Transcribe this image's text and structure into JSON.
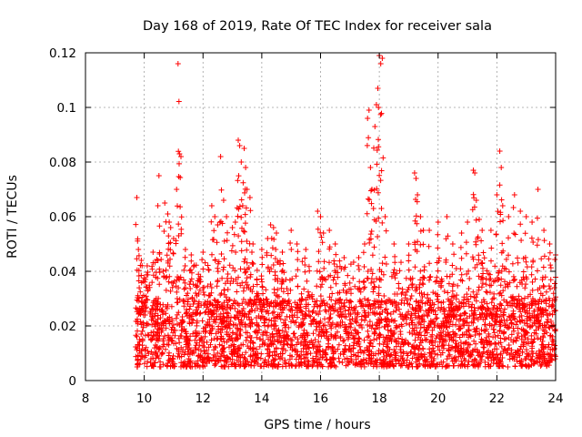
{
  "chart_data": {
    "type": "scatter",
    "title": "Day 168 of 2019, Rate Of TEC Index for receiver sala",
    "xlabel": "GPS time / hours",
    "ylabel": "ROTI / TECUs",
    "xlim": [
      8,
      24
    ],
    "ylim": [
      0,
      0.12
    ],
    "xticks": [
      "8",
      "10",
      "12",
      "14",
      "16",
      "18",
      "20",
      "22",
      "24"
    ],
    "xtick_values": [
      8,
      10,
      12,
      14,
      16,
      18,
      20,
      22,
      24
    ],
    "yticks": [
      "0",
      "0.02",
      "0.04",
      "0.06",
      "0.08",
      "0.1",
      "0.12"
    ],
    "ytick_values": [
      0,
      0.02,
      0.04,
      0.06,
      0.08,
      0.1,
      0.12
    ],
    "grid": true,
    "marker": "+",
    "color": "#ff0000",
    "series": [
      {
        "name": "ROTI",
        "x_start": 9.7,
        "x_end": 24.0,
        "baseline_range": [
          0.005,
          0.03
        ],
        "points": [
          [
            9.75,
            0.067
          ],
          [
            9.8,
            0.048
          ],
          [
            9.9,
            0.044
          ],
          [
            10.1,
            0.042
          ],
          [
            10.3,
            0.047
          ],
          [
            10.5,
            0.075
          ],
          [
            10.7,
            0.065
          ],
          [
            10.8,
            0.061
          ],
          [
            10.85,
            0.058
          ],
          [
            10.9,
            0.056
          ],
          [
            11.0,
            0.052
          ],
          [
            11.1,
            0.07
          ],
          [
            11.15,
            0.116
          ],
          [
            11.2,
            0.083
          ],
          [
            11.25,
            0.082
          ],
          [
            11.4,
            0.048
          ],
          [
            11.6,
            0.046
          ],
          [
            12.0,
            0.047
          ],
          [
            12.3,
            0.064
          ],
          [
            12.4,
            0.06
          ],
          [
            12.5,
            0.057
          ],
          [
            12.6,
            0.082
          ],
          [
            12.7,
            0.066
          ],
          [
            12.8,
            0.06
          ],
          [
            13.0,
            0.056
          ],
          [
            13.1,
            0.058
          ],
          [
            13.2,
            0.088
          ],
          [
            13.25,
            0.086
          ],
          [
            13.3,
            0.08
          ],
          [
            13.35,
            0.064
          ],
          [
            13.4,
            0.085
          ],
          [
            13.45,
            0.078
          ],
          [
            13.5,
            0.07
          ],
          [
            13.6,
            0.067
          ],
          [
            13.7,
            0.05
          ],
          [
            14.0,
            0.048
          ],
          [
            14.2,
            0.052
          ],
          [
            14.3,
            0.057
          ],
          [
            14.4,
            0.056
          ],
          [
            14.5,
            0.054
          ],
          [
            14.7,
            0.047
          ],
          [
            15.0,
            0.055
          ],
          [
            15.2,
            0.05
          ],
          [
            15.5,
            0.048
          ],
          [
            15.9,
            0.062
          ],
          [
            16.0,
            0.06
          ],
          [
            16.1,
            0.054
          ],
          [
            16.3,
            0.055
          ],
          [
            16.5,
            0.05
          ],
          [
            16.8,
            0.045
          ],
          [
            17.3,
            0.045
          ],
          [
            17.5,
            0.05
          ],
          [
            17.6,
            0.096
          ],
          [
            17.65,
            0.099
          ],
          [
            17.7,
            0.078
          ],
          [
            17.75,
            0.07
          ],
          [
            17.8,
            0.063
          ],
          [
            17.85,
            0.093
          ],
          [
            17.9,
            0.101
          ],
          [
            17.95,
            0.107
          ],
          [
            18.0,
            0.119
          ],
          [
            18.05,
            0.116
          ],
          [
            18.1,
            0.118
          ],
          [
            18.2,
            0.06
          ],
          [
            18.5,
            0.05
          ],
          [
            19.0,
            0.05
          ],
          [
            19.2,
            0.076
          ],
          [
            19.25,
            0.074
          ],
          [
            19.3,
            0.068
          ],
          [
            19.4,
            0.06
          ],
          [
            19.5,
            0.055
          ],
          [
            19.7,
            0.055
          ],
          [
            20.0,
            0.058
          ],
          [
            20.3,
            0.06
          ],
          [
            20.5,
            0.05
          ],
          [
            20.8,
            0.054
          ],
          [
            21.0,
            0.058
          ],
          [
            21.2,
            0.077
          ],
          [
            21.25,
            0.076
          ],
          [
            21.3,
            0.066
          ],
          [
            21.4,
            0.059
          ],
          [
            21.5,
            0.055
          ],
          [
            21.8,
            0.055
          ],
          [
            22.0,
            0.068
          ],
          [
            22.1,
            0.084
          ],
          [
            22.15,
            0.078
          ],
          [
            22.2,
            0.064
          ],
          [
            22.4,
            0.06
          ],
          [
            22.6,
            0.068
          ],
          [
            22.8,
            0.062
          ],
          [
            23.0,
            0.06
          ],
          [
            23.2,
            0.058
          ],
          [
            23.4,
            0.07
          ],
          [
            23.6,
            0.055
          ],
          [
            23.8,
            0.05
          ],
          [
            24.0,
            0.046
          ]
        ]
      }
    ]
  }
}
